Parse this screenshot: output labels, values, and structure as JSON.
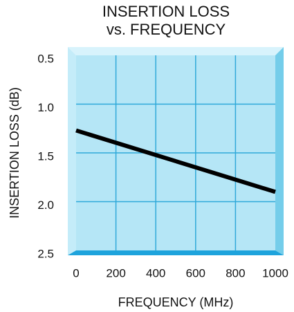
{
  "chart_data": {
    "type": "line",
    "title": [
      "INSERTION LOSS",
      "vs. FREQUENCY"
    ],
    "x_label": "FREQUENCY (MHz)",
    "y_label": "INSERTION LOSS (dB)",
    "x": [
      0,
      1000
    ],
    "values": [
      1.27,
      1.9
    ],
    "color": "#000000",
    "xlim": [
      0,
      1000
    ],
    "xticks": [
      0,
      200,
      400,
      600,
      800,
      1000
    ],
    "ylim": [
      2.5,
      0.5
    ],
    "yticks": [
      0.5,
      {
        "value": 1.0,
        "label": "1.0"
      },
      1.5,
      {
        "value": 2.0,
        "label": "2.0"
      },
      2.5
    ],
    "grid": true
  }
}
